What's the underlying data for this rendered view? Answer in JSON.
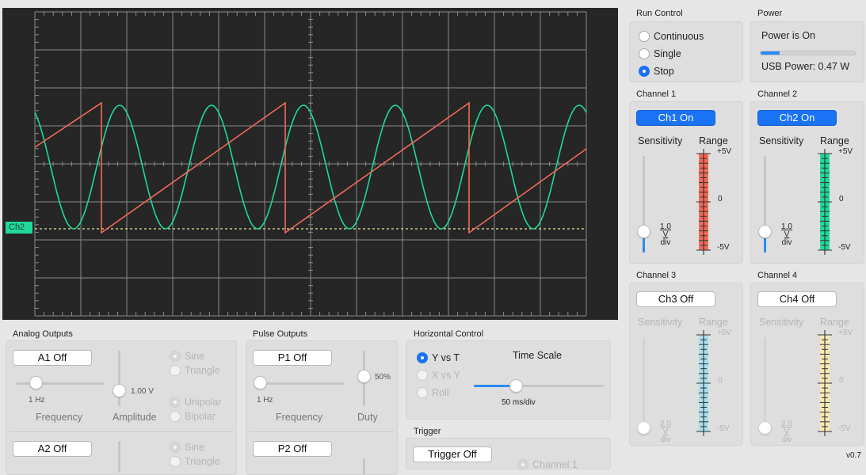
{
  "scope": {
    "ch2_marker": "Ch2"
  },
  "run_control": {
    "title": "Run Control",
    "continuous": "Continuous",
    "single": "Single",
    "stop": "Stop"
  },
  "power": {
    "title": "Power",
    "status": "Power is On",
    "usb_power": "USB Power: 0.47 W",
    "usb_power_level": 0.2
  },
  "channel1": {
    "title": "Channel 1",
    "button": "Ch1 On",
    "sensitivity": "Sensitivity",
    "range": "Range",
    "plus": "+5V",
    "zero": "0",
    "minus": "-5V",
    "value": "1.0 V",
    "unit": "div",
    "color": "#f06b56"
  },
  "channel2": {
    "title": "Channel 2",
    "button": "Ch2 On",
    "sensitivity": "Sensitivity",
    "range": "Range",
    "plus": "+5V",
    "zero": "0",
    "minus": "-5V",
    "value": "1.0 V",
    "unit": "div",
    "color": "#1ed99a"
  },
  "channel3": {
    "title": "Channel 3",
    "button": "Ch3 Off",
    "sensitivity": "Sensitivity",
    "range": "Range",
    "plus": "+5V",
    "zero": "0",
    "minus": "-5V",
    "value": "2.0 V",
    "unit": "div",
    "color": "#a8e0f0"
  },
  "channel4": {
    "title": "Channel 4",
    "button": "Ch4 Off",
    "sensitivity": "Sensitivity",
    "range": "Range",
    "plus": "+5V",
    "zero": "0",
    "minus": "-5V",
    "value": "2.0 V",
    "unit": "div",
    "color": "#f6eab2"
  },
  "analog": {
    "title": "Analog Outputs",
    "a1": "A1 Off",
    "a2": "A2 Off",
    "freq_value": "1 Hz",
    "amp_value": "1.00 V",
    "frequency": "Frequency",
    "amplitude": "Amplitude",
    "sine": "Sine",
    "triangle": "Triangle",
    "unipolar": "Unipolar",
    "bipolar": "Bipolar"
  },
  "pulse": {
    "title": "Pulse Outputs",
    "p1": "P1 Off",
    "p2": "P2 Off",
    "freq_value": "1 Hz",
    "duty_value": "50%",
    "frequency": "Frequency",
    "duty": "Duty"
  },
  "horizontal": {
    "title": "Horizontal Control",
    "yvt": "Y vs T",
    "xvy": "X vs Y",
    "roll": "Roll",
    "time_scale": "Time Scale",
    "time_value": "50 ms/div"
  },
  "trigger": {
    "title": "Trigger",
    "button": "Trigger Off",
    "channel": "Channel 1"
  },
  "version": "v0.7"
}
